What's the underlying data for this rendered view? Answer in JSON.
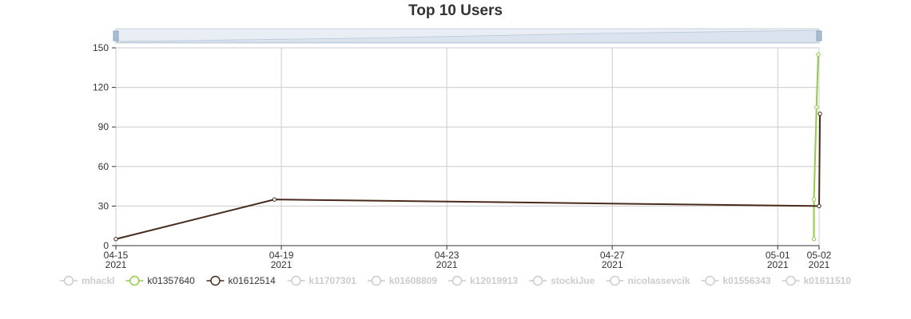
{
  "chart_data": {
    "type": "line",
    "title": "Top 10 Users",
    "xlabel": "",
    "ylabel": "",
    "ylim": [
      0,
      150
    ],
    "y_ticks": [
      0,
      30,
      60,
      90,
      120,
      150
    ],
    "xlim": [
      "2021-04-15",
      "2021-05-02"
    ],
    "x_ticks": [
      {
        "date": "2021-04-15",
        "label": "04-15",
        "sublabel": "2021"
      },
      {
        "date": "2021-04-19",
        "label": "04-19",
        "sublabel": "2021"
      },
      {
        "date": "2021-04-23",
        "label": "04-23",
        "sublabel": "2021"
      },
      {
        "date": "2021-04-27",
        "label": "04-27",
        "sublabel": "2021"
      },
      {
        "date": "2021-05-01",
        "label": "05-01",
        "sublabel": "2021"
      },
      {
        "date": "2021-05-02",
        "label": "05-02",
        "sublabel": "2021"
      }
    ],
    "grid": true,
    "legend_position": "bottom",
    "data_zoom_slider": true,
    "series": [
      {
        "name": "mhackl",
        "color": "#cccccc",
        "visible": false,
        "points": []
      },
      {
        "name": "k01357640",
        "color": "#91cc4a",
        "visible": true,
        "points": [
          [
            "2021-05-01 21:00",
            5
          ],
          [
            "2021-05-01 21:00",
            35
          ],
          [
            "2021-05-01 22:30",
            105
          ],
          [
            "2021-05-01 23:30",
            145
          ]
        ]
      },
      {
        "name": "k01612514",
        "color": "#4a2a1a",
        "visible": true,
        "points": [
          [
            "2021-04-15 00:00",
            5
          ],
          [
            "2021-04-18 20:00",
            35
          ],
          [
            "2021-05-02 00:00",
            30
          ],
          [
            "2021-05-02 00:30",
            100
          ]
        ]
      },
      {
        "name": "k11707301",
        "color": "#cccccc",
        "visible": false,
        "points": []
      },
      {
        "name": "k01608809",
        "color": "#cccccc",
        "visible": false,
        "points": []
      },
      {
        "name": "k12019913",
        "color": "#cccccc",
        "visible": false,
        "points": []
      },
      {
        "name": "stockiJue",
        "color": "#cccccc",
        "visible": false,
        "points": []
      },
      {
        "name": "nicolassevcik",
        "color": "#cccccc",
        "visible": false,
        "points": []
      },
      {
        "name": "k01556343",
        "color": "#cccccc",
        "visible": false,
        "points": []
      },
      {
        "name": "k01611510",
        "color": "#cccccc",
        "visible": false,
        "points": []
      }
    ]
  }
}
